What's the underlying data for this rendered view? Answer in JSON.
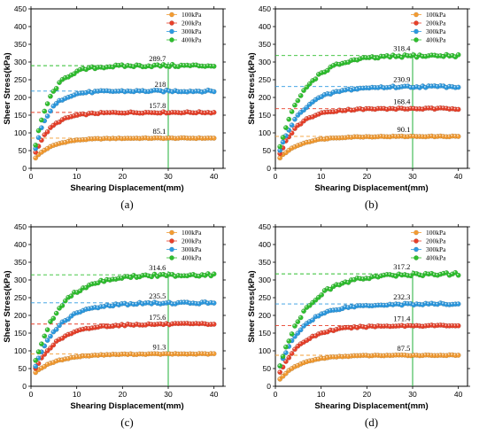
{
  "chart_data": [
    {
      "type": "scatter",
      "panel_label": "(a)",
      "xlabel": "Shearing Displacement(mm)",
      "ylabel": "Sheer Stress(kPa)",
      "xlim": [
        0,
        42
      ],
      "ylim": [
        0,
        450
      ],
      "xticks": [
        0,
        10,
        20,
        30,
        40
      ],
      "yticks": [
        0,
        50,
        100,
        150,
        200,
        250,
        300,
        350,
        400,
        450
      ],
      "legend_position": "top-right",
      "series": [
        {
          "name": "100kPa",
          "color": "#f39c33",
          "plateau": 85.1,
          "x_sat": 4,
          "start": 30
        },
        {
          "name": "200kPa",
          "color": "#e8412b",
          "plateau": 157.8,
          "x_sat": 3.5,
          "start": 45
        },
        {
          "name": "300kPa",
          "color": "#2e9ae0",
          "plateau": 218,
          "x_sat": 3,
          "start": 55
        },
        {
          "name": "400kPa",
          "color": "#2fbf2f",
          "plateau": 289.7,
          "x_sat": 3.5,
          "start": 65
        }
      ],
      "annotations": [
        {
          "text": "289.7",
          "x": 29.5,
          "y": 289.7
        },
        {
          "text": "218",
          "x": 29.5,
          "y": 218
        },
        {
          "text": "157.8",
          "x": 29.5,
          "y": 157.8
        },
        {
          "text": "85.1",
          "x": 29.5,
          "y": 85.1
        }
      ],
      "vline_x": 30
    },
    {
      "type": "scatter",
      "panel_label": "(b)",
      "xlabel": "Shearing Displacement(mm)",
      "ylabel": "Sheer Stress(kPa)",
      "xlim": [
        0,
        42
      ],
      "ylim": [
        0,
        450
      ],
      "xticks": [
        0,
        10,
        20,
        30,
        40
      ],
      "yticks": [
        0,
        50,
        100,
        150,
        200,
        250,
        300,
        350,
        400,
        450
      ],
      "legend_position": "top-right",
      "series": [
        {
          "name": "100kPa",
          "color": "#f39c33",
          "plateau": 90.1,
          "x_sat": 4.5,
          "start": 30
        },
        {
          "name": "200kPa",
          "color": "#e8412b",
          "plateau": 168.4,
          "x_sat": 4,
          "start": 40
        },
        {
          "name": "300kPa",
          "color": "#2e9ae0",
          "plateau": 230.9,
          "x_sat": 5,
          "start": 50
        },
        {
          "name": "400kPa",
          "color": "#2fbf2f",
          "plateau": 318.4,
          "x_sat": 5.5,
          "start": 60
        }
      ],
      "annotations": [
        {
          "text": "318.4",
          "x": 29.5,
          "y": 318.4
        },
        {
          "text": "230.9",
          "x": 29.5,
          "y": 230.9
        },
        {
          "text": "168.4",
          "x": 29.5,
          "y": 168.4
        },
        {
          "text": "90.1",
          "x": 29.5,
          "y": 90.1
        }
      ],
      "vline_x": 30
    },
    {
      "type": "scatter",
      "panel_label": "(c)",
      "xlabel": "Shearing Displacement(mm)",
      "ylabel": "Sheer Stress(kPa)",
      "xlim": [
        0,
        42
      ],
      "ylim": [
        0,
        450
      ],
      "xticks": [
        0,
        10,
        20,
        30,
        40
      ],
      "yticks": [
        0,
        50,
        100,
        150,
        200,
        250,
        300,
        350,
        400,
        450
      ],
      "legend_position": "top-right",
      "series": [
        {
          "name": "100kPa",
          "color": "#f39c33",
          "plateau": 91.3,
          "x_sat": 5,
          "start": 40
        },
        {
          "name": "200kPa",
          "color": "#e8412b",
          "plateau": 175.6,
          "x_sat": 5,
          "start": 50
        },
        {
          "name": "300kPa",
          "color": "#2e9ae0",
          "plateau": 235.5,
          "x_sat": 5,
          "start": 55
        },
        {
          "name": "400kPa",
          "color": "#2fbf2f",
          "plateau": 314.6,
          "x_sat": 5.5,
          "start": 70
        }
      ],
      "annotations": [
        {
          "text": "314.6",
          "x": 29.5,
          "y": 314.6
        },
        {
          "text": "235.5",
          "x": 29.5,
          "y": 235.5
        },
        {
          "text": "175.6",
          "x": 29.5,
          "y": 175.6
        },
        {
          "text": "91.3",
          "x": 29.5,
          "y": 91.3
        }
      ],
      "vline_x": 30
    },
    {
      "type": "scatter",
      "panel_label": "(d)",
      "xlabel": "Shearing Displacement(mm)",
      "ylabel": "Sheer Stress(kPa)",
      "xlim": [
        0,
        42
      ],
      "ylim": [
        0,
        450
      ],
      "xticks": [
        0,
        10,
        20,
        30,
        40
      ],
      "yticks": [
        0,
        50,
        100,
        150,
        200,
        250,
        300,
        350,
        400,
        450
      ],
      "legend_position": "top-right",
      "series": [
        {
          "name": "100kPa",
          "color": "#f39c33",
          "plateau": 87.5,
          "x_sat": 4.5,
          "start": 20
        },
        {
          "name": "200kPa",
          "color": "#e8412b",
          "plateau": 171.4,
          "x_sat": 5,
          "start": 40
        },
        {
          "name": "300kPa",
          "color": "#2e9ae0",
          "plateau": 232.3,
          "x_sat": 5,
          "start": 55
        },
        {
          "name": "400kPa",
          "color": "#2fbf2f",
          "plateau": 317.2,
          "x_sat": 6,
          "start": 60
        }
      ],
      "annotations": [
        {
          "text": "317.2",
          "x": 29.5,
          "y": 317.2
        },
        {
          "text": "232.3",
          "x": 29.5,
          "y": 232.3
        },
        {
          "text": "171.4",
          "x": 29.5,
          "y": 171.4
        },
        {
          "text": "87.5",
          "x": 29.5,
          "y": 87.5
        }
      ],
      "vline_x": 30
    }
  ]
}
